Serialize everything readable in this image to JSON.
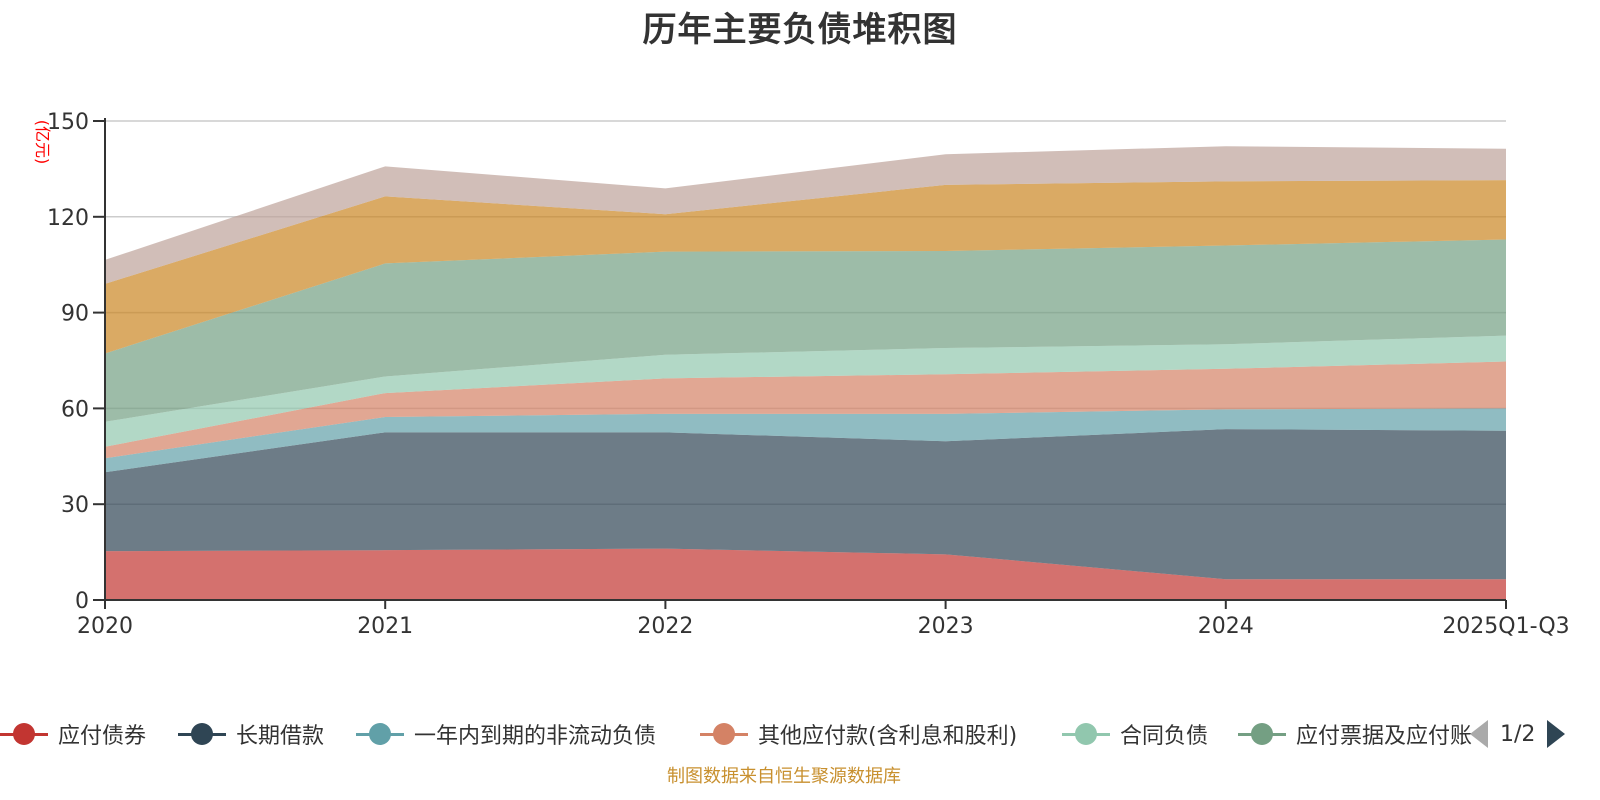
{
  "title": "历年主要负债堆积图",
  "source_note": "制图数据来自恒生聚源数据库",
  "legend_pager": {
    "text": "1/2",
    "prev_icon": "triangle-left",
    "next_icon": "triangle-right"
  },
  "legend_visible": [
    {
      "name": "应付债券",
      "color": "#c23531"
    },
    {
      "name": "长期借款",
      "color": "#2f4554"
    },
    {
      "name": "一年内到期的非流动负债",
      "color": "#61a0a8"
    },
    {
      "name": "其他应付款(含利息和股利)",
      "color": "#d48265"
    },
    {
      "name": "合同负债",
      "color": "#91c7ae"
    },
    {
      "name": "应付票据及应付账",
      "color": "#749f83"
    }
  ],
  "chart_data": {
    "type": "area",
    "stacked": true,
    "title": "历年主要负债堆积图",
    "xlabel": "",
    "ylabel": "(亿元)",
    "categories": [
      "2020",
      "2021",
      "2022",
      "2023",
      "2024",
      "2025Q1-Q3"
    ],
    "ylim": [
      0,
      150
    ],
    "yticks": [
      0,
      30,
      60,
      90,
      120,
      150
    ],
    "grid": true,
    "legend_position": "bottom",
    "series": [
      {
        "name": "应付债券",
        "color": "#c23531",
        "values": [
          15.3,
          15.6,
          16.1,
          14.3,
          6.5,
          6.5
        ]
      },
      {
        "name": "长期借款",
        "color": "#2f4554",
        "values": [
          24.7,
          36.9,
          36.4,
          35.4,
          47.0,
          46.5
        ]
      },
      {
        "name": "一年内到期的非流动负债",
        "color": "#61a0a8",
        "values": [
          4.4,
          4.8,
          5.8,
          8.6,
          6.2,
          7.0
        ]
      },
      {
        "name": "其他应付款(含利息和股利)",
        "color": "#d48265",
        "values": [
          3.6,
          7.5,
          11.1,
          12.4,
          12.7,
          14.7
        ]
      },
      {
        "name": "合同负债",
        "color": "#91c7ae",
        "values": [
          7.8,
          5.2,
          7.4,
          8.2,
          7.7,
          8.1
        ]
      },
      {
        "name": "应付票据及应付账款",
        "color": "#749f83",
        "values": [
          21.4,
          35.4,
          32.3,
          30.4,
          30.9,
          30.1
        ]
      },
      {
        "name": "",
        "color": "#ca8622",
        "values": [
          21.8,
          21.0,
          11.7,
          20.7,
          20.1,
          18.6
        ]
      },
      {
        "name": "",
        "color": "#bda29a",
        "values": [
          7.5,
          9.4,
          8.1,
          9.6,
          11.0,
          9.8
        ]
      }
    ]
  }
}
